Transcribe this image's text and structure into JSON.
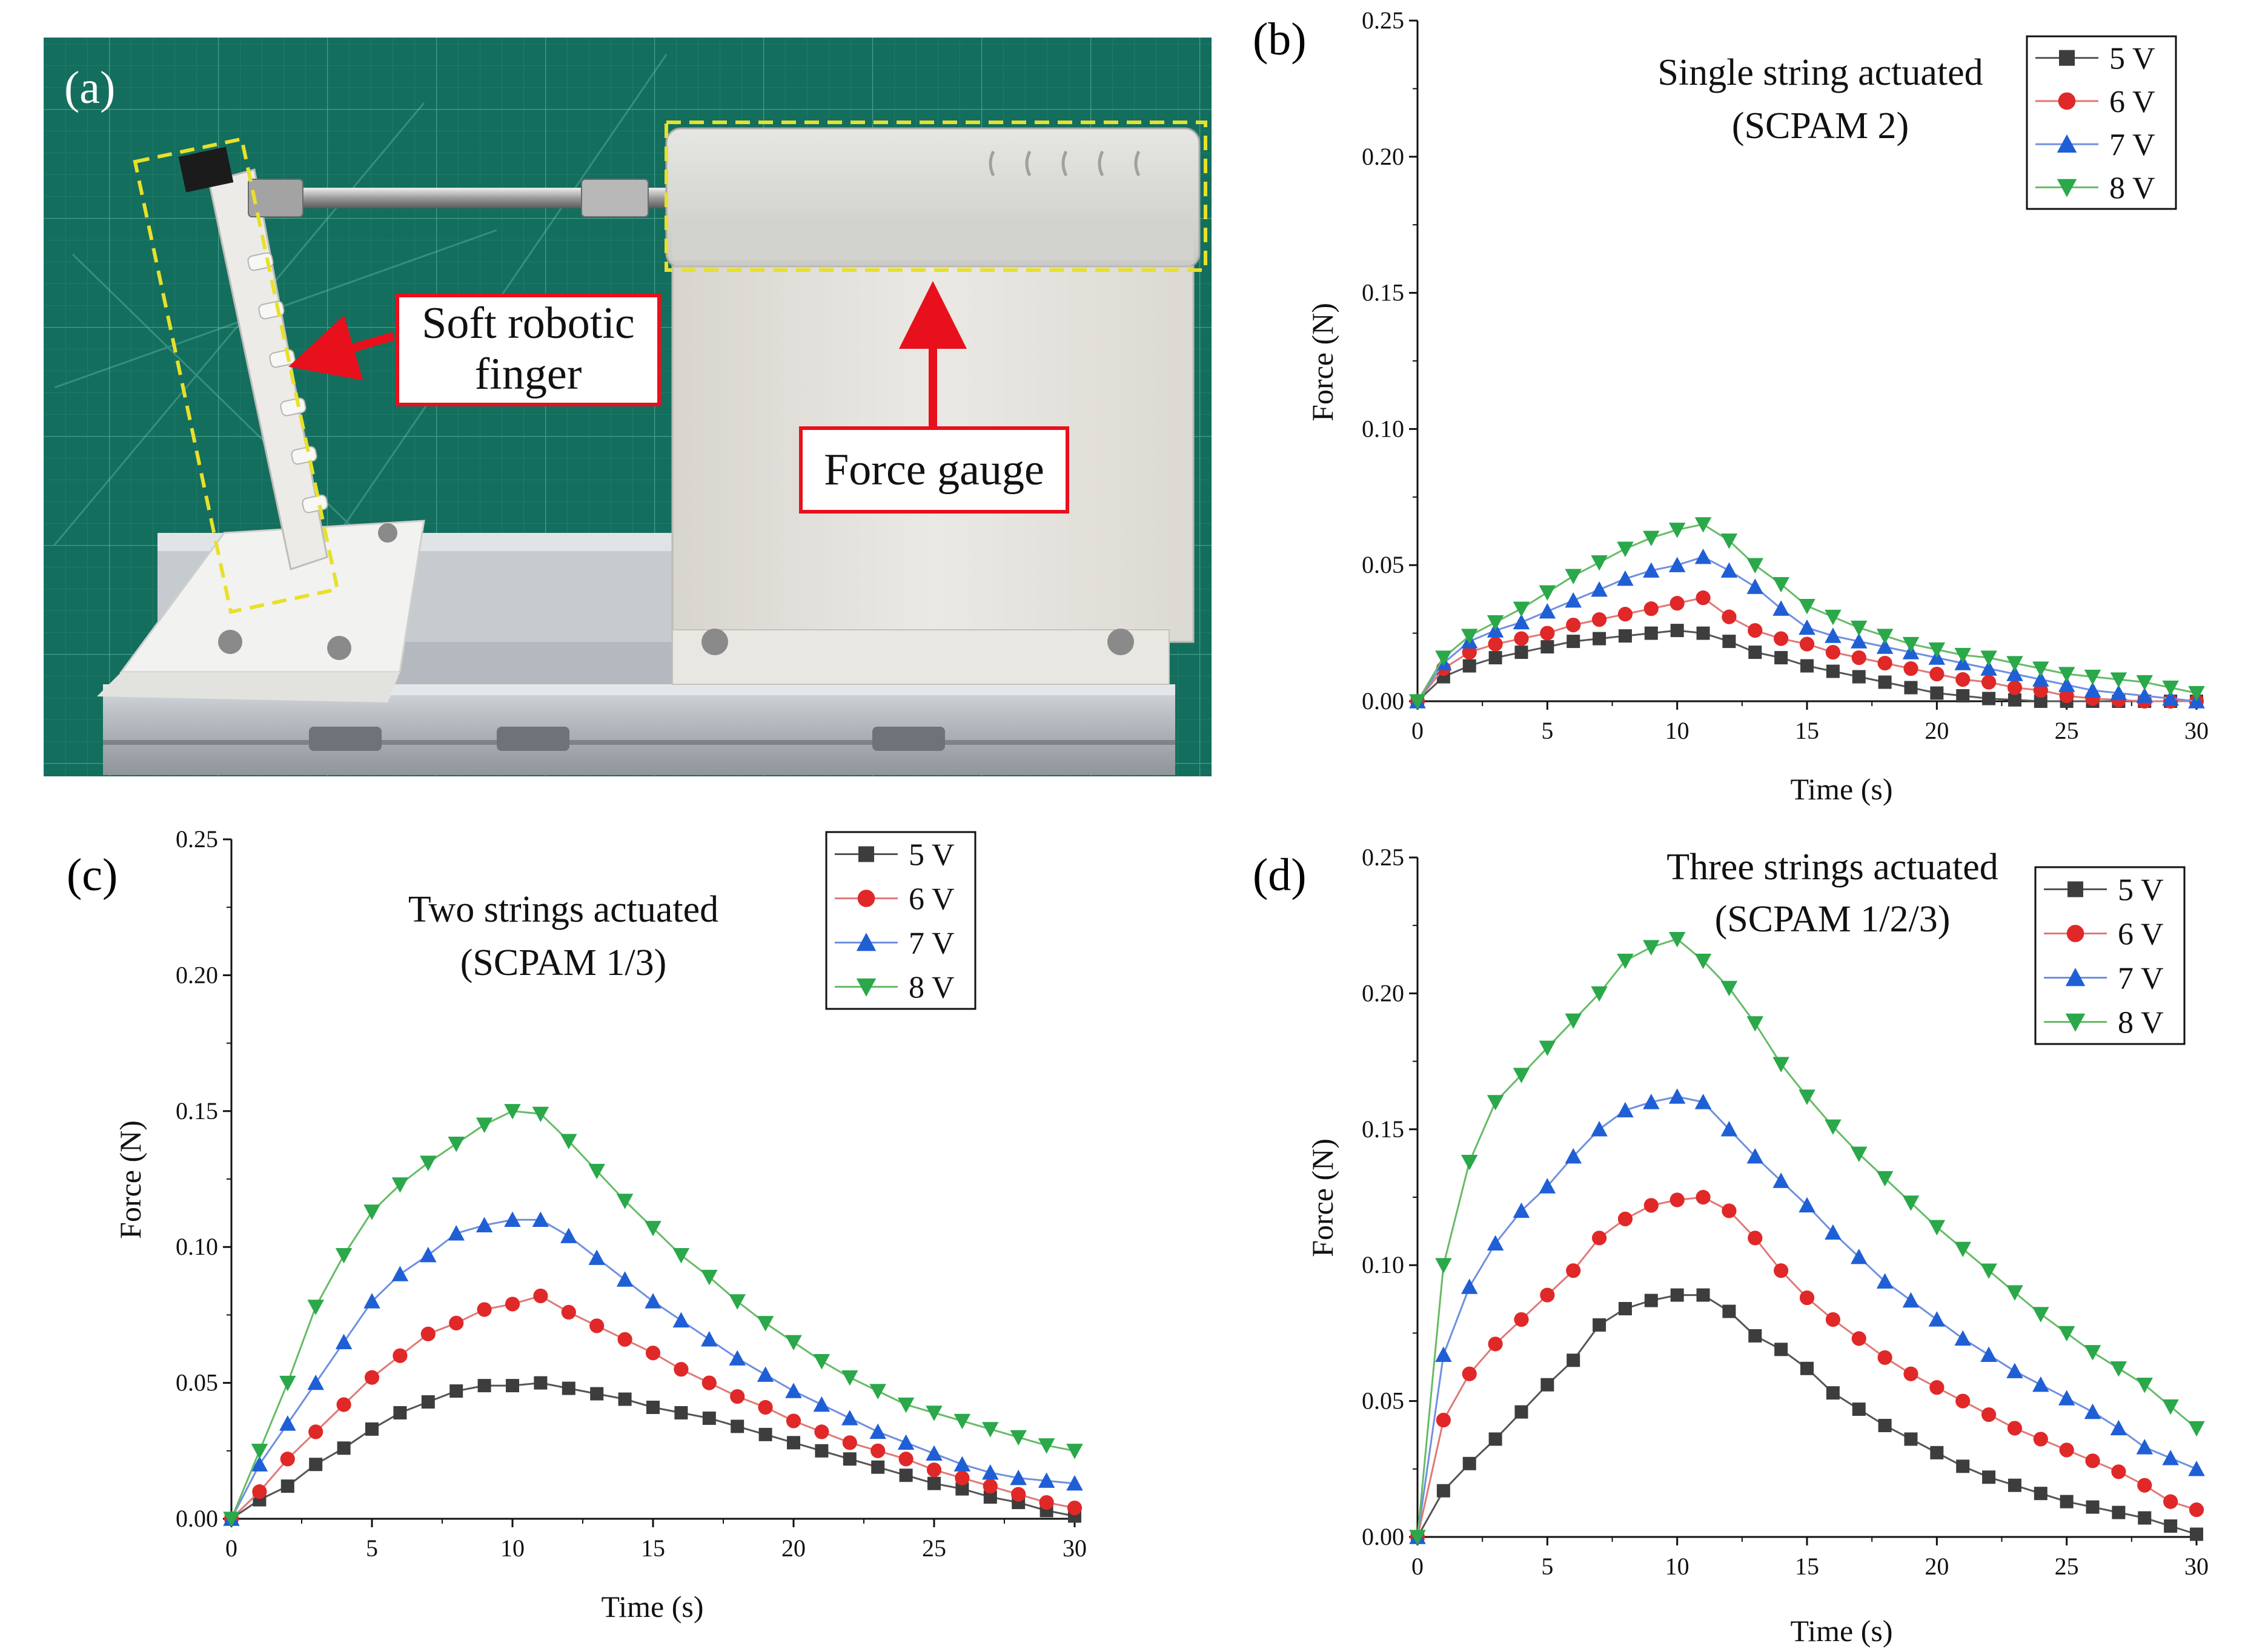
{
  "figure": {
    "panel_a": {
      "letter": "(a)",
      "callout_finger_line1": "Soft robotic",
      "callout_finger_line2": "finger",
      "callout_gauge": "Force gauge"
    }
  },
  "colors": {
    "s5": "#3d3d3d",
    "s6": "#e02828",
    "s7": "#1f5fd6",
    "s8": "#2aa84a",
    "line5": "#555555",
    "line6": "#e07878",
    "line7": "#6f8fe0",
    "line8": "#66bb66",
    "callout_red": "#e8101c",
    "dash_yellow": "#e8e02a"
  },
  "chart_data": [
    {
      "panel": "(b)",
      "type": "line",
      "title_line1": "Single string actuated",
      "title_line2": "(SCPAM 2)",
      "xlabel": "Time (s)",
      "ylabel": "Force (N)",
      "xlim": [
        0,
        30
      ],
      "ylim": [
        0,
        0.25
      ],
      "xticks": [
        "0",
        "5",
        "10",
        "15",
        "20",
        "25",
        "30"
      ],
      "yticks": [
        "0.00",
        "0.05",
        "0.10",
        "0.15",
        "0.20",
        "0.25"
      ],
      "legend_position": "top-right",
      "x": [
        0,
        1,
        2,
        3,
        4,
        5,
        6,
        7,
        8,
        9,
        10,
        11,
        12,
        13,
        14,
        15,
        16,
        17,
        18,
        19,
        20,
        21,
        22,
        23,
        24,
        25,
        26,
        27,
        28,
        29,
        30
      ],
      "series": [
        {
          "name": "5 V",
          "marker": "square",
          "values": [
            0,
            0.009,
            0.013,
            0.016,
            0.018,
            0.02,
            0.022,
            0.023,
            0.024,
            0.025,
            0.026,
            0.025,
            0.022,
            0.018,
            0.016,
            0.013,
            0.011,
            0.009,
            0.007,
            0.005,
            0.003,
            0.002,
            0.001,
            0.0005,
            0,
            0,
            0,
            0,
            0,
            0,
            0
          ]
        },
        {
          "name": "6 V",
          "marker": "circle",
          "values": [
            0,
            0.012,
            0.018,
            0.021,
            0.023,
            0.025,
            0.028,
            0.03,
            0.032,
            0.034,
            0.036,
            0.038,
            0.031,
            0.026,
            0.023,
            0.021,
            0.018,
            0.016,
            0.014,
            0.012,
            0.01,
            0.008,
            0.007,
            0.005,
            0.004,
            0.002,
            0.001,
            0.0005,
            0,
            0,
            0
          ]
        },
        {
          "name": "7 V",
          "marker": "triangle-up",
          "values": [
            0,
            0.014,
            0.022,
            0.026,
            0.029,
            0.033,
            0.037,
            0.041,
            0.045,
            0.048,
            0.05,
            0.053,
            0.048,
            0.042,
            0.034,
            0.027,
            0.024,
            0.022,
            0.02,
            0.018,
            0.016,
            0.014,
            0.012,
            0.01,
            0.008,
            0.006,
            0.004,
            0.003,
            0.002,
            0.001,
            0
          ]
        },
        {
          "name": "8 V",
          "marker": "triangle-down",
          "values": [
            0,
            0.016,
            0.024,
            0.029,
            0.034,
            0.04,
            0.046,
            0.051,
            0.056,
            0.06,
            0.063,
            0.065,
            0.059,
            0.05,
            0.043,
            0.035,
            0.031,
            0.027,
            0.024,
            0.021,
            0.019,
            0.017,
            0.016,
            0.014,
            0.012,
            0.01,
            0.009,
            0.008,
            0.007,
            0.005,
            0.003
          ]
        }
      ]
    },
    {
      "panel": "(c)",
      "type": "line",
      "title_line1": "Two strings actuated",
      "title_line2": "(SCPAM 1/3)",
      "xlabel": "Time (s)",
      "ylabel": "Force (N)",
      "xlim": [
        0,
        30
      ],
      "ylim": [
        0,
        0.25
      ],
      "xticks": [
        "0",
        "5",
        "10",
        "15",
        "20",
        "25",
        "30"
      ],
      "yticks": [
        "0.00",
        "0.05",
        "0.10",
        "0.15",
        "0.20",
        "0.25"
      ],
      "legend_position": "top-right",
      "x": [
        0,
        1,
        2,
        3,
        4,
        5,
        6,
        7,
        8,
        9,
        10,
        11,
        12,
        13,
        14,
        15,
        16,
        17,
        18,
        19,
        20,
        21,
        22,
        23,
        24,
        25,
        26,
        27,
        28,
        29,
        30
      ],
      "series": [
        {
          "name": "5 V",
          "marker": "square",
          "values": [
            0,
            0.007,
            0.012,
            0.02,
            0.026,
            0.033,
            0.039,
            0.043,
            0.047,
            0.049,
            0.049,
            0.05,
            0.048,
            0.046,
            0.044,
            0.041,
            0.039,
            0.037,
            0.034,
            0.031,
            0.028,
            0.025,
            0.022,
            0.019,
            0.016,
            0.013,
            0.011,
            0.008,
            0.006,
            0.003,
            0.001
          ]
        },
        {
          "name": "6 V",
          "marker": "circle",
          "values": [
            0,
            0.01,
            0.022,
            0.032,
            0.042,
            0.052,
            0.06,
            0.068,
            0.072,
            0.077,
            0.079,
            0.082,
            0.076,
            0.071,
            0.066,
            0.061,
            0.055,
            0.05,
            0.045,
            0.041,
            0.036,
            0.032,
            0.028,
            0.025,
            0.022,
            0.018,
            0.015,
            0.012,
            0.009,
            0.006,
            0.004
          ]
        },
        {
          "name": "7 V",
          "marker": "triangle-up",
          "values": [
            0,
            0.02,
            0.035,
            0.05,
            0.065,
            0.08,
            0.09,
            0.097,
            0.105,
            0.108,
            0.11,
            0.11,
            0.104,
            0.096,
            0.088,
            0.08,
            0.073,
            0.066,
            0.059,
            0.053,
            0.047,
            0.042,
            0.037,
            0.032,
            0.028,
            0.024,
            0.02,
            0.017,
            0.015,
            0.014,
            0.013
          ]
        },
        {
          "name": "8 V",
          "marker": "triangle-down",
          "values": [
            0,
            0.025,
            0.05,
            0.078,
            0.097,
            0.113,
            0.123,
            0.131,
            0.138,
            0.145,
            0.15,
            0.149,
            0.139,
            0.128,
            0.117,
            0.107,
            0.097,
            0.089,
            0.08,
            0.072,
            0.065,
            0.058,
            0.052,
            0.047,
            0.042,
            0.039,
            0.036,
            0.033,
            0.03,
            0.027,
            0.025
          ]
        }
      ]
    },
    {
      "panel": "(d)",
      "type": "line",
      "title_line1": "Three strings actuated",
      "title_line2": "(SCPAM 1/2/3)",
      "xlabel": "Time (s)",
      "ylabel": "Force (N)",
      "xlim": [
        0,
        30
      ],
      "ylim": [
        0,
        0.25
      ],
      "xticks": [
        "0",
        "5",
        "10",
        "15",
        "20",
        "25",
        "30"
      ],
      "yticks": [
        "0.00",
        "0.05",
        "0.10",
        "0.15",
        "0.20",
        "0.25"
      ],
      "legend_position": "top-right",
      "x": [
        0,
        1,
        2,
        3,
        4,
        5,
        6,
        7,
        8,
        9,
        10,
        11,
        12,
        13,
        14,
        15,
        16,
        17,
        18,
        19,
        20,
        21,
        22,
        23,
        24,
        25,
        26,
        27,
        28,
        29,
        30
      ],
      "series": [
        {
          "name": "5 V",
          "marker": "square",
          "values": [
            0,
            0.017,
            0.027,
            0.036,
            0.046,
            0.056,
            0.065,
            0.078,
            0.084,
            0.087,
            0.089,
            0.089,
            0.083,
            0.074,
            0.069,
            0.062,
            0.053,
            0.047,
            0.041,
            0.036,
            0.031,
            0.026,
            0.022,
            0.019,
            0.016,
            0.013,
            0.011,
            0.009,
            0.007,
            0.004,
            0.001
          ]
        },
        {
          "name": "6 V",
          "marker": "circle",
          "values": [
            0,
            0.043,
            0.06,
            0.071,
            0.08,
            0.089,
            0.098,
            0.11,
            0.117,
            0.122,
            0.124,
            0.125,
            0.12,
            0.11,
            0.098,
            0.088,
            0.08,
            0.073,
            0.066,
            0.06,
            0.055,
            0.05,
            0.045,
            0.04,
            0.036,
            0.032,
            0.028,
            0.024,
            0.019,
            0.013,
            0.01
          ]
        },
        {
          "name": "7 V",
          "marker": "triangle-up",
          "values": [
            0,
            0.067,
            0.092,
            0.108,
            0.12,
            0.129,
            0.14,
            0.15,
            0.157,
            0.16,
            0.162,
            0.16,
            0.15,
            0.14,
            0.131,
            0.122,
            0.112,
            0.103,
            0.094,
            0.087,
            0.08,
            0.073,
            0.067,
            0.061,
            0.056,
            0.051,
            0.046,
            0.04,
            0.033,
            0.029,
            0.025
          ]
        },
        {
          "name": "8 V",
          "marker": "triangle-down",
          "values": [
            0,
            0.1,
            0.138,
            0.16,
            0.17,
            0.18,
            0.19,
            0.2,
            0.212,
            0.217,
            0.22,
            0.212,
            0.202,
            0.189,
            0.174,
            0.162,
            0.151,
            0.141,
            0.132,
            0.123,
            0.114,
            0.106,
            0.098,
            0.09,
            0.082,
            0.075,
            0.068,
            0.062,
            0.056,
            0.048,
            0.04
          ]
        }
      ]
    }
  ]
}
